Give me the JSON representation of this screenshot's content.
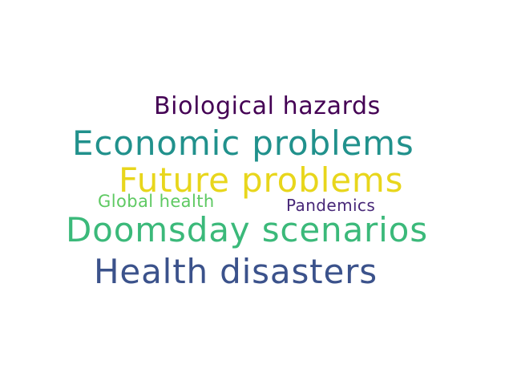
{
  "words": {
    "biological_hazards": {
      "text": "Biological hazards",
      "color": "#440154"
    },
    "economic_problems": {
      "text": "Economic problems",
      "color": "#21918c"
    },
    "future_problems": {
      "text": "Future problems",
      "color": "#e8d61c"
    },
    "global_health": {
      "text": "Global health",
      "color": "#5ec962"
    },
    "pandemics": {
      "text": "Pandemics",
      "color": "#482878"
    },
    "doomsday_scenarios": {
      "text": "Doomsday scenarios",
      "color": "#3bb97a"
    },
    "health_disasters": {
      "text": "Health disasters",
      "color": "#3b528b"
    }
  }
}
